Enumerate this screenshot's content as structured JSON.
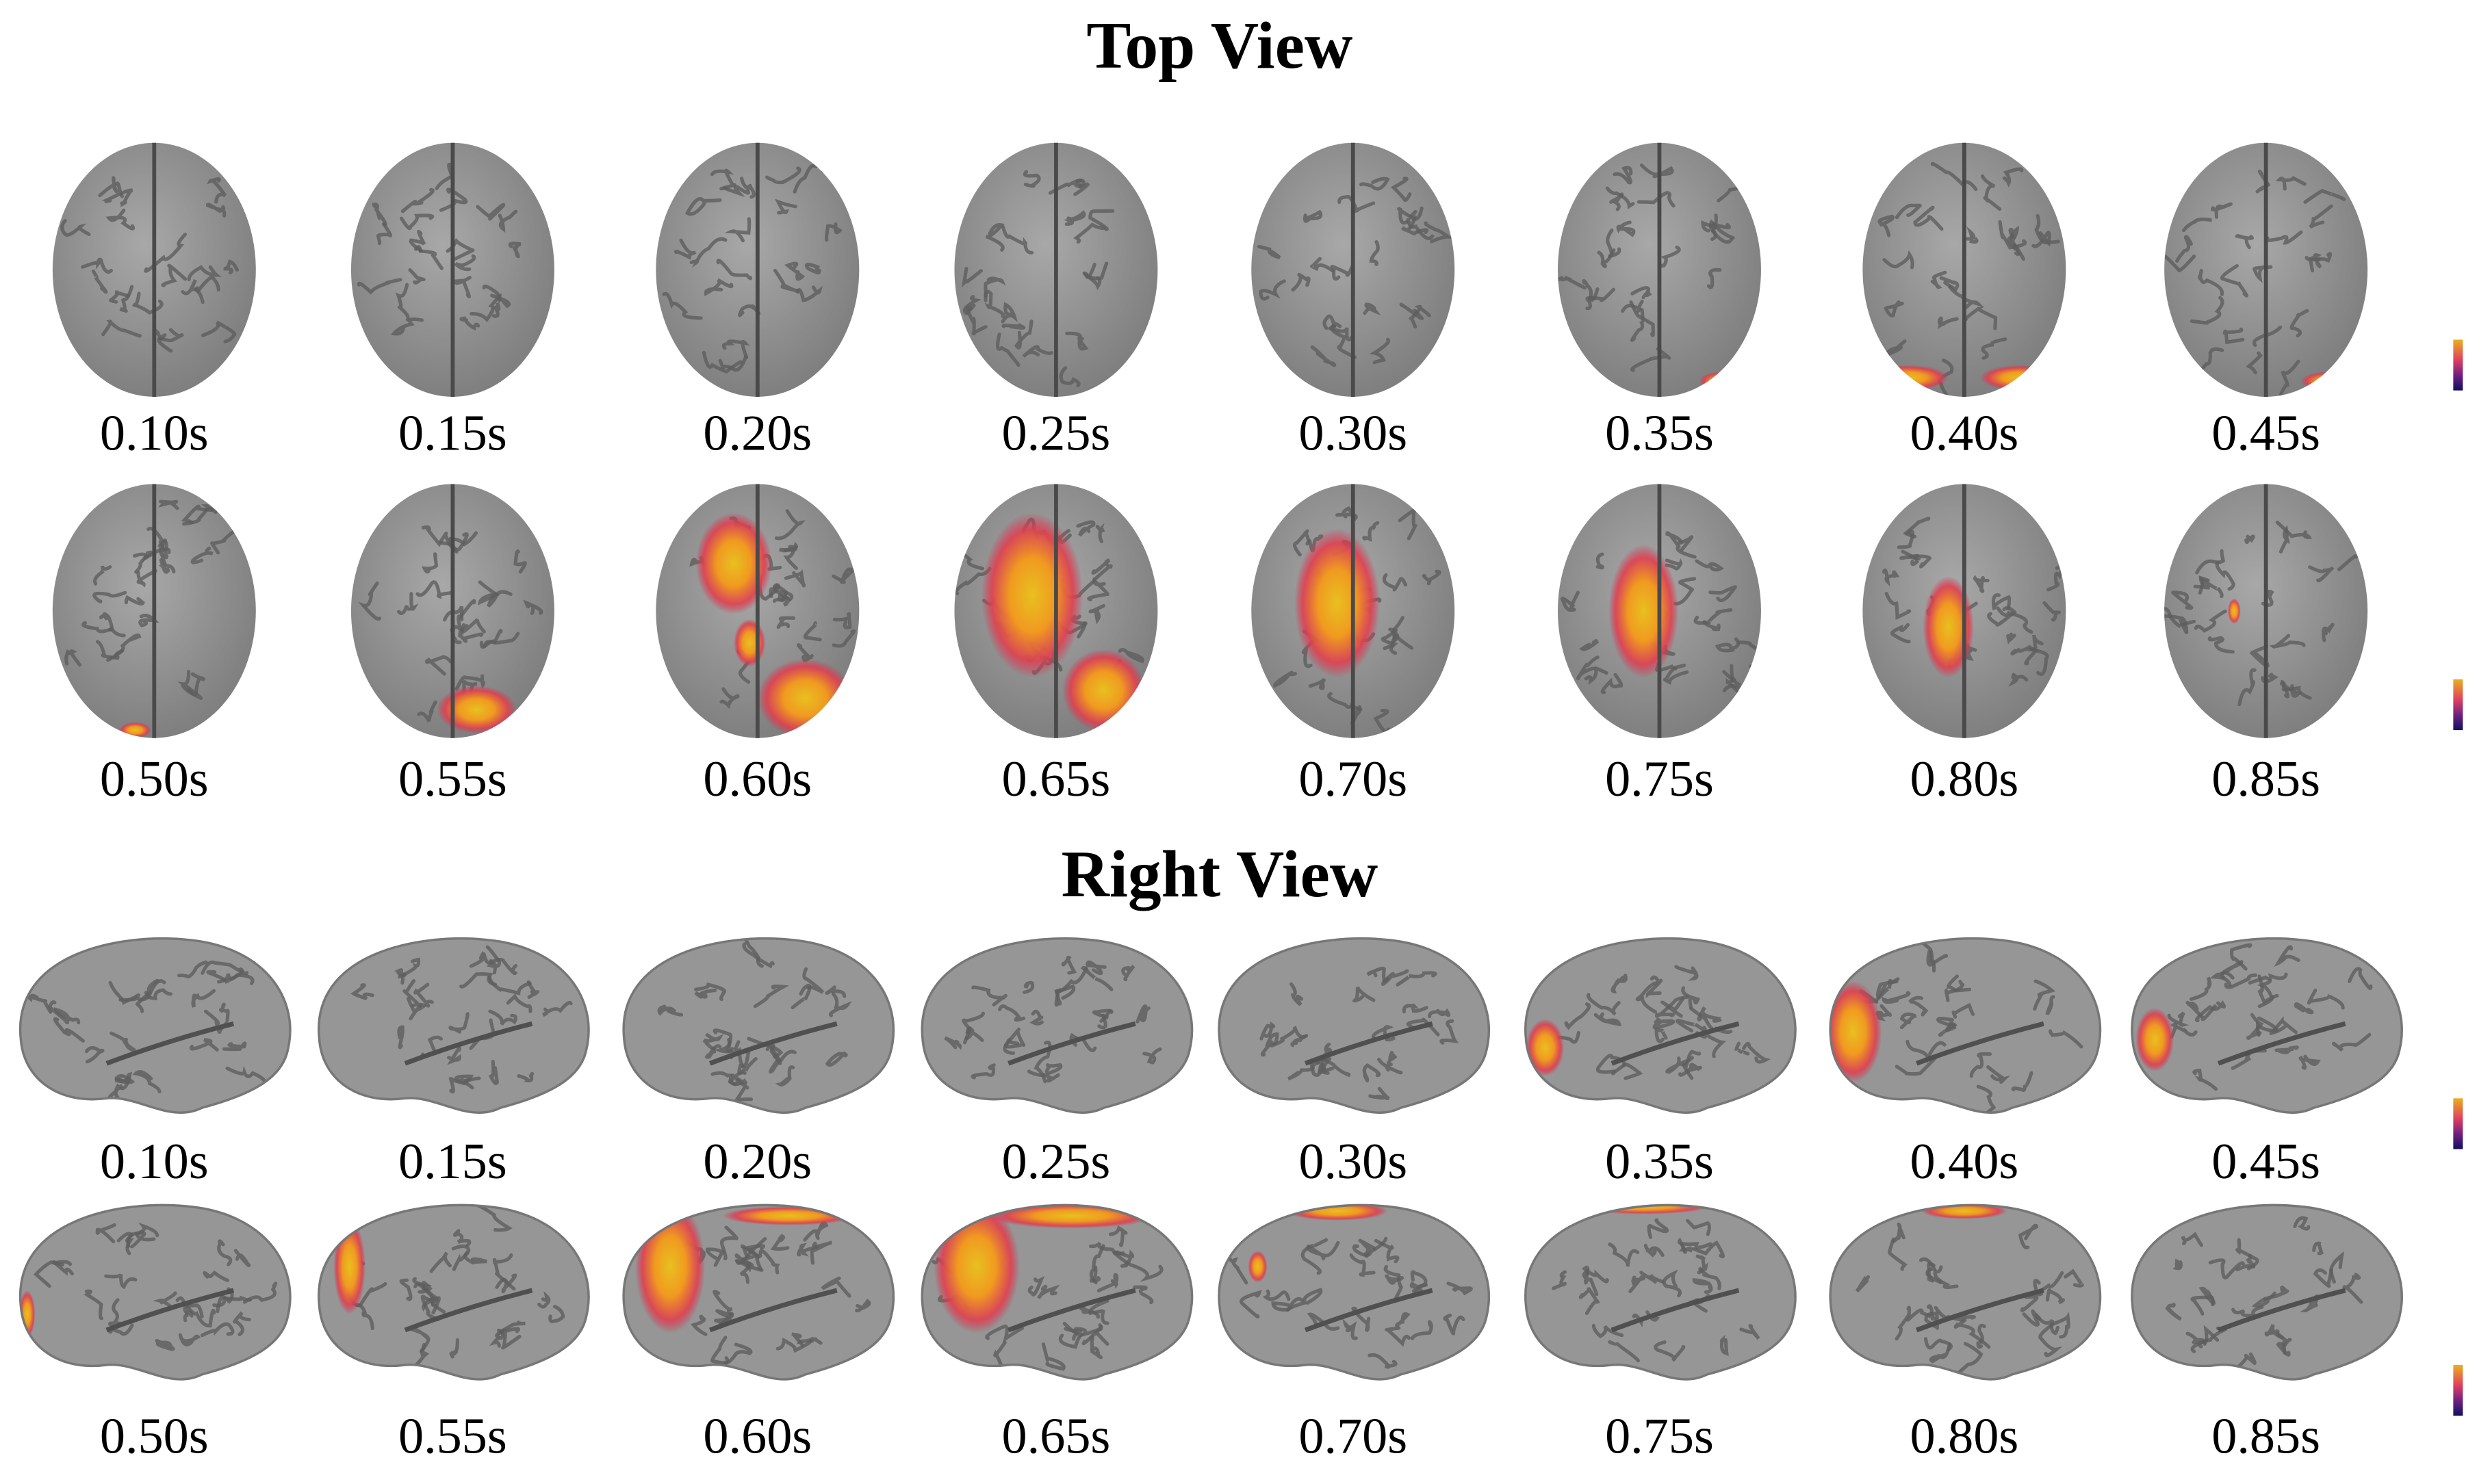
{
  "sections": [
    {
      "title": "Top View",
      "rows": [
        [
          "0.10s",
          "0.15s",
          "0.20s",
          "0.25s",
          "0.30s",
          "0.35s",
          "0.40s",
          "0.45s"
        ],
        [
          "0.50s",
          "0.55s",
          "0.60s",
          "0.65s",
          "0.70s",
          "0.75s",
          "0.80s",
          "0.85s"
        ]
      ]
    },
    {
      "title": "Right View",
      "rows": [
        [
          "0.10s",
          "0.15s",
          "0.20s",
          "0.25s",
          "0.30s",
          "0.35s",
          "0.40s",
          "0.45s"
        ],
        [
          "0.50s",
          "0.55s",
          "0.60s",
          "0.65s",
          "0.70s",
          "0.75s",
          "0.80s",
          "0.85s"
        ]
      ]
    }
  ]
}
